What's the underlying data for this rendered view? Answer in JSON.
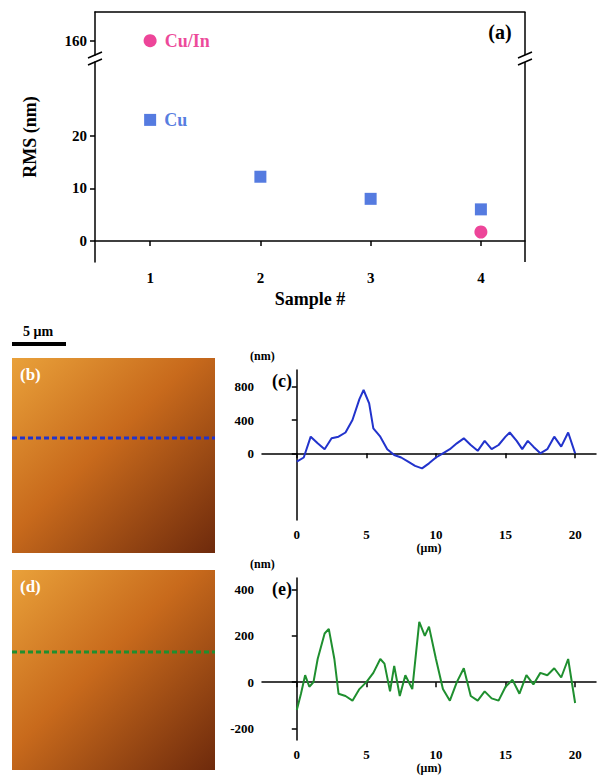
{
  "chart_data": [
    {
      "type": "scatter",
      "title": "(a)",
      "x_label": "Sample #",
      "y_label": "RMS (nm)",
      "xlim": [
        0.5,
        4.4
      ],
      "xticks": [
        1,
        2,
        3,
        4
      ],
      "ylim": [
        -4,
        166
      ],
      "ybreak": [
        34,
        157
      ],
      "yticks": [
        0,
        10,
        20,
        160
      ],
      "x": [
        1,
        2,
        3,
        4
      ],
      "series": [
        {
          "name": "Cu/In",
          "color": "#e8177f",
          "marker": "circle",
          "values": [
            160,
            null,
            null,
            1.7
          ]
        },
        {
          "name": "Cu",
          "color": "#2a5ad8",
          "marker": "square",
          "values": [
            23,
            12.2,
            8,
            6
          ]
        }
      ]
    },
    {
      "type": "line",
      "title": "(c)",
      "x_label": "(μm)",
      "y_label": "(nm)",
      "color": "#2233cc",
      "xlim": [
        -2.5,
        21.5
      ],
      "xticks": [
        0,
        5,
        10,
        15,
        20
      ],
      "ylim": [
        -800,
        1000
      ],
      "yticks": [
        0,
        400,
        800
      ],
      "x": [
        0,
        0.5,
        1,
        1.5,
        2,
        2.5,
        3,
        3.5,
        4,
        4.5,
        4.8,
        5.2,
        5.5,
        6,
        6.5,
        7,
        7.5,
        8,
        8.5,
        9,
        9.5,
        10,
        10.5,
        11,
        11.5,
        12,
        12.5,
        13,
        13.5,
        14,
        14.5,
        15,
        15.3,
        15.8,
        16.2,
        16.6,
        17,
        17.5,
        18,
        18.5,
        19,
        19.5,
        20
      ],
      "values": [
        -100,
        -50,
        200,
        120,
        50,
        180,
        200,
        250,
        400,
        650,
        760,
        600,
        300,
        200,
        50,
        -20,
        -50,
        -100,
        -150,
        -180,
        -120,
        -50,
        0,
        50,
        120,
        180,
        100,
        30,
        150,
        50,
        100,
        200,
        250,
        150,
        50,
        150,
        80,
        0,
        50,
        200,
        80,
        250,
        0
      ]
    },
    {
      "type": "line",
      "title": "(e)",
      "x_label": "(μm)",
      "y_label": "(nm)",
      "color": "#1f8f2f",
      "xlim": [
        -2.5,
        21.5
      ],
      "xticks": [
        0,
        5,
        10,
        15,
        20
      ],
      "ylim": [
        -250,
        450
      ],
      "yticks": [
        -200,
        0,
        200,
        400
      ],
      "x": [
        0,
        0.3,
        0.6,
        0.9,
        1.2,
        1.5,
        2,
        2.3,
        2.7,
        3,
        3.5,
        4,
        4.5,
        5,
        5.5,
        6,
        6.3,
        6.7,
        7,
        7.4,
        7.8,
        8.3,
        8.8,
        9.2,
        9.5,
        10,
        10.5,
        11,
        11.5,
        12,
        12.5,
        13,
        13.5,
        14,
        14.5,
        15,
        15.5,
        16,
        16.5,
        17,
        17.5,
        18,
        18.5,
        19,
        19.5,
        20
      ],
      "values": [
        -120,
        -50,
        30,
        -20,
        0,
        100,
        210,
        230,
        100,
        -50,
        -60,
        -80,
        -30,
        0,
        40,
        100,
        80,
        -40,
        70,
        -60,
        30,
        -30,
        260,
        200,
        240,
        100,
        -30,
        -80,
        0,
        60,
        -60,
        -80,
        -40,
        -70,
        -80,
        -20,
        10,
        -50,
        30,
        -10,
        40,
        30,
        60,
        20,
        100,
        -90
      ]
    }
  ],
  "images": [
    {
      "label": "(b)",
      "scale_bar": "5 μm"
    },
    {
      "label": "(d)"
    }
  ]
}
